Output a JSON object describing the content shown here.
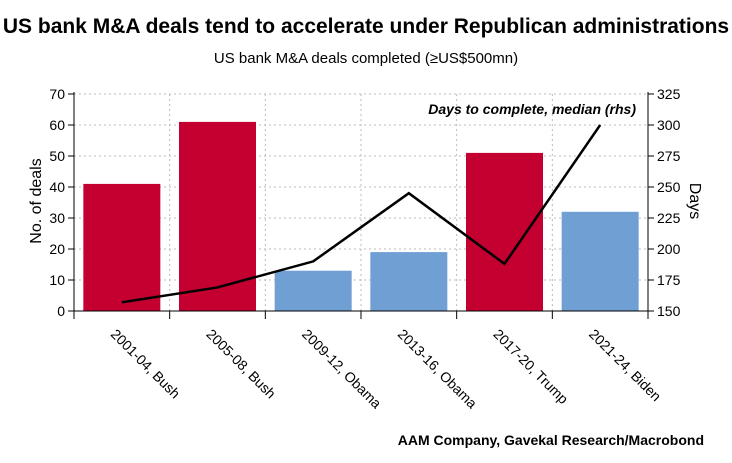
{
  "chart_data": {
    "type": "bar",
    "title": "US bank M&A deals tend to accelerate under Republican administrations",
    "subtitle": "US bank M&A deals completed (≥US$500mn)",
    "categories": [
      "2001-04, Bush",
      "2005-08, Bush",
      "2009-12, Obama",
      "2013-16, Obama",
      "2017-20, Trump",
      "2021-24, Biden"
    ],
    "series": [
      {
        "name": "No. of deals",
        "axis": "left",
        "values": [
          41,
          61,
          13,
          19,
          51,
          32
        ],
        "colors": [
          "#c3002f",
          "#c3002f",
          "#6f9fd3",
          "#6f9fd3",
          "#c3002f",
          "#6f9fd3"
        ]
      },
      {
        "name": "Days to complete, median (rhs)",
        "axis": "right",
        "type": "line",
        "color": "#000000",
        "values": [
          157,
          169,
          190,
          245,
          188,
          300
        ]
      }
    ],
    "ylabel": "No. of deals",
    "ylim": [
      0,
      70
    ],
    "yticks": [
      0,
      10,
      20,
      30,
      40,
      50,
      60,
      70
    ],
    "y2label": "Days",
    "y2lim": [
      150,
      325
    ],
    "y2ticks": [
      150,
      175,
      200,
      225,
      250,
      275,
      300,
      325
    ],
    "annotation": "Days to complete, median (rhs)",
    "grid": true,
    "source": "AAM Company, Gavekal Research/Macrobond"
  }
}
